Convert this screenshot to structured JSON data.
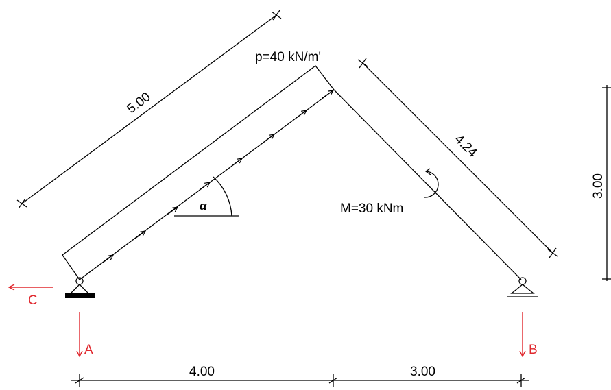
{
  "labels": {
    "load": "p=40 kN/m'",
    "moment": "M=30 kNm",
    "angle": "α",
    "dim_incline_left": "5.00",
    "dim_incline_right": "4.24",
    "dim_height": "3.00",
    "dim_span_left": "4.00",
    "dim_span_right": "3.00",
    "reaction_A": "A",
    "reaction_B": "B",
    "reaction_C": "C"
  },
  "colors": {
    "line": "#000000",
    "reaction": "#e0282e"
  }
}
